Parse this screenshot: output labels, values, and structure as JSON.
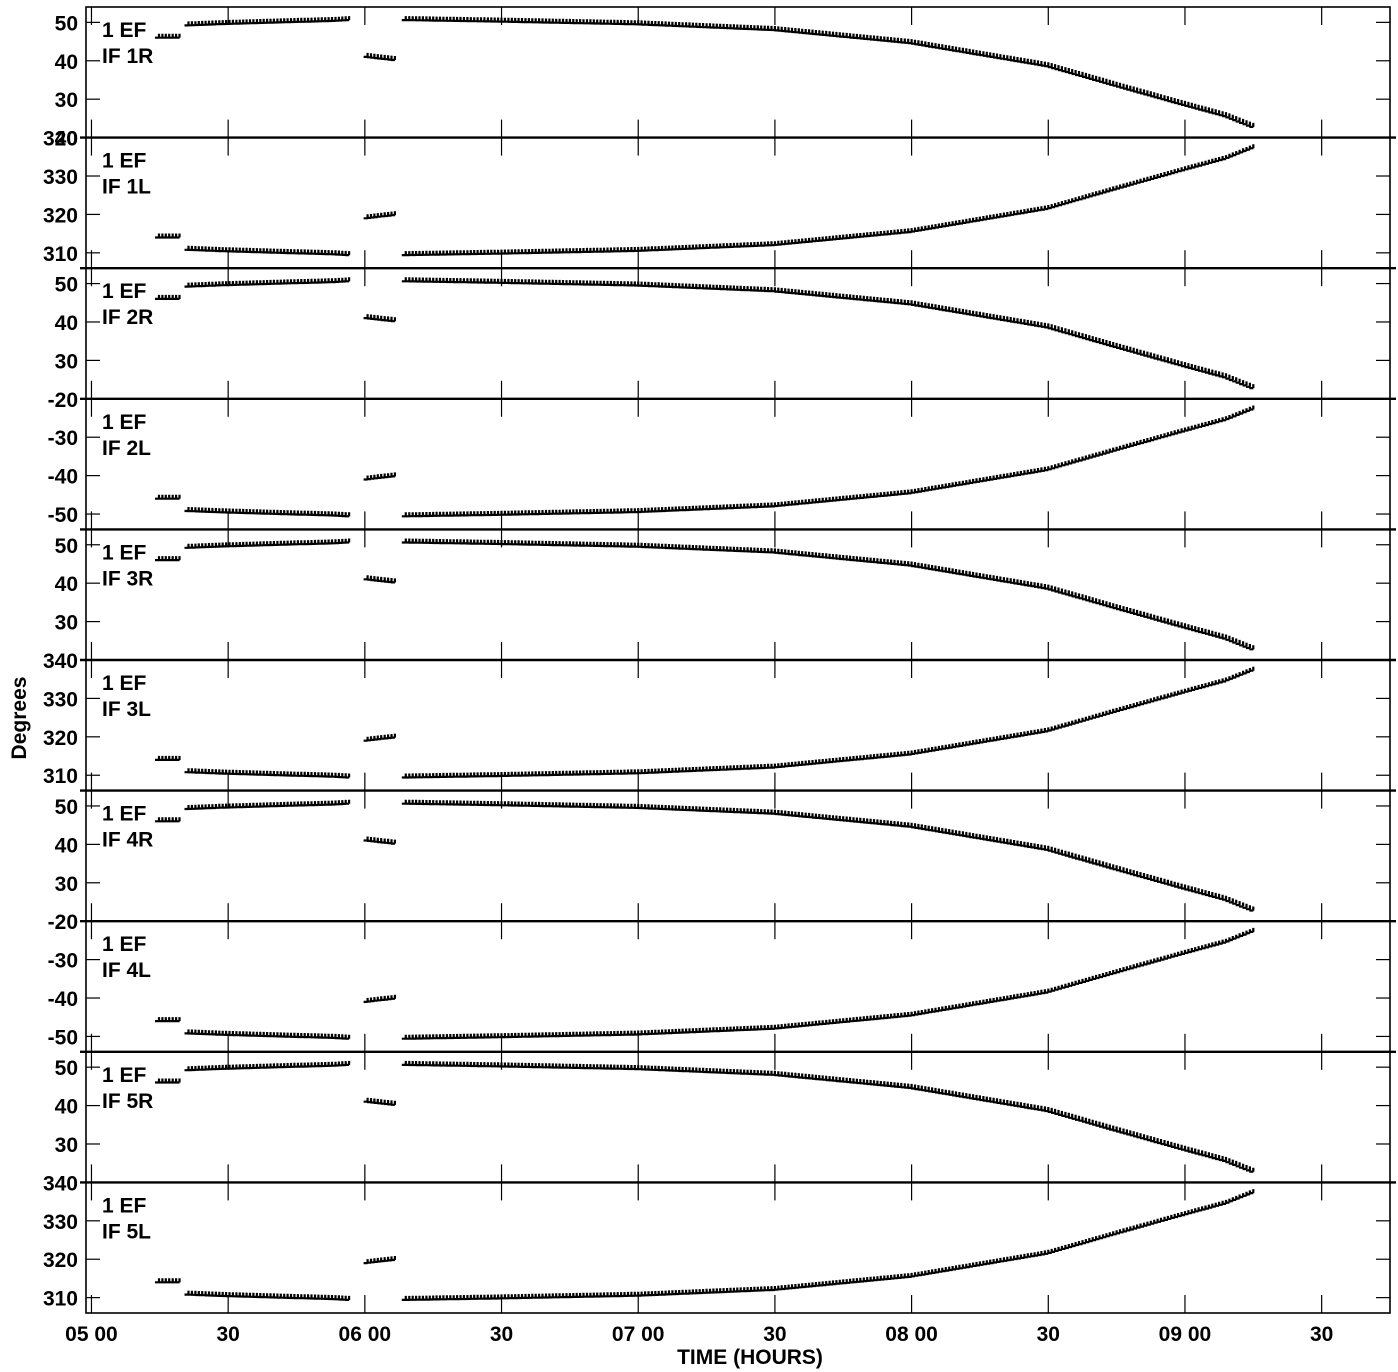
{
  "chart_data": {
    "type": "scatter",
    "marker": "+",
    "xlabel": "TIME (HOURS)",
    "ylabel": "Degrees",
    "title_fragment": "",
    "xlim_hours": [
      4.98,
      9.75
    ],
    "x_ticks": [
      {
        "t": 5.0,
        "label": "05 00"
      },
      {
        "t": 5.5,
        "label": "30"
      },
      {
        "t": 6.0,
        "label": "06 00"
      },
      {
        "t": 6.5,
        "label": "30"
      },
      {
        "t": 7.0,
        "label": "07 00"
      },
      {
        "t": 7.5,
        "label": "30"
      },
      {
        "t": 8.0,
        "label": "08 00"
      },
      {
        "t": 8.5,
        "label": "30"
      },
      {
        "t": 9.0,
        "label": "09 00"
      },
      {
        "t": 9.5,
        "label": "30"
      }
    ],
    "segments": [
      {
        "start": 5.247,
        "end": 5.327
      },
      {
        "start": 5.355,
        "end": 5.945
      },
      {
        "start": 6.01,
        "end": 6.11
      },
      {
        "start": 6.15,
        "end": 9.26
      }
    ],
    "panels": [
      {
        "antenna": "1 EF",
        "if": "IF 1R",
        "kind": "R",
        "ylim": [
          20,
          54
        ],
        "ticks": [
          20,
          30,
          40,
          50
        ]
      },
      {
        "antenna": "1 EF",
        "if": "IF 1L",
        "kind": "L360",
        "ylim": [
          306,
          340
        ],
        "ticks": [
          310,
          320,
          330,
          340
        ]
      },
      {
        "antenna": "1 EF",
        "if": "IF 2R",
        "kind": "R",
        "ylim": [
          20,
          54
        ],
        "ticks": [
          30,
          40,
          50
        ]
      },
      {
        "antenna": "1 EF",
        "if": "IF 2L",
        "kind": "L",
        "ylim": [
          -54,
          -20
        ],
        "ticks": [
          -50,
          -40,
          -30,
          -20
        ]
      },
      {
        "antenna": "1 EF",
        "if": "IF 3R",
        "kind": "R",
        "ylim": [
          20,
          54
        ],
        "ticks": [
          30,
          40,
          50
        ]
      },
      {
        "antenna": "1 EF",
        "if": "IF 3L",
        "kind": "L360",
        "ylim": [
          306,
          340
        ],
        "ticks": [
          310,
          320,
          330,
          340
        ]
      },
      {
        "antenna": "1 EF",
        "if": "IF 4R",
        "kind": "R",
        "ylim": [
          20,
          54
        ],
        "ticks": [
          30,
          40,
          50
        ]
      },
      {
        "antenna": "1 EF",
        "if": "IF 4L",
        "kind": "L",
        "ylim": [
          -54,
          -20
        ],
        "ticks": [
          -50,
          -40,
          -30,
          -20
        ]
      },
      {
        "antenna": "1 EF",
        "if": "IF 5R",
        "kind": "R",
        "ylim": [
          20,
          54
        ],
        "ticks": [
          30,
          40,
          50
        ]
      },
      {
        "antenna": "1 EF",
        "if": "IF 5L",
        "kind": "L360",
        "ylim": [
          306,
          340
        ],
        "ticks": [
          310,
          320,
          330,
          340
        ]
      }
    ],
    "samples_R": [
      {
        "t": 5.247,
        "y": 46
      },
      {
        "t": 5.327,
        "y": 46
      },
      {
        "t": 5.355,
        "y": 49.2
      },
      {
        "t": 5.5,
        "y": 49.6
      },
      {
        "t": 5.7,
        "y": 50.0
      },
      {
        "t": 5.9,
        "y": 50.4
      },
      {
        "t": 5.945,
        "y": 50.6
      },
      {
        "t": 6.01,
        "y": 41
      },
      {
        "t": 6.11,
        "y": 40.2
      },
      {
        "t": 6.15,
        "y": 50.6
      },
      {
        "t": 6.5,
        "y": 50.2
      },
      {
        "t": 7.0,
        "y": 49.5
      },
      {
        "t": 7.5,
        "y": 48.0
      },
      {
        "t": 8.0,
        "y": 44.6
      },
      {
        "t": 8.5,
        "y": 38.6
      },
      {
        "t": 8.75,
        "y": 33.5
      },
      {
        "t": 9.0,
        "y": 28.5
      },
      {
        "t": 9.15,
        "y": 25.6
      },
      {
        "t": 9.26,
        "y": 22.5
      }
    ]
  }
}
